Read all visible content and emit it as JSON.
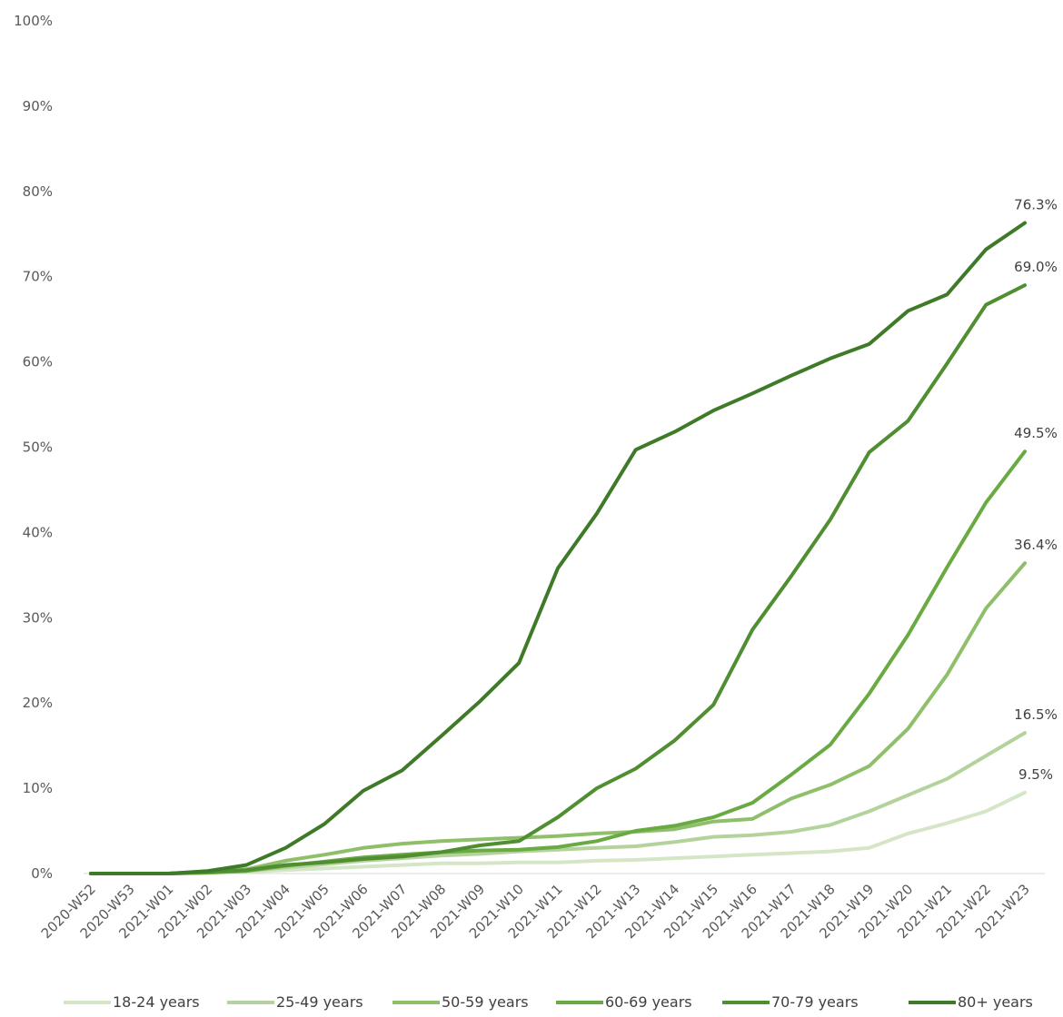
{
  "chart_data": {
    "type": "line",
    "title": "",
    "xlabel": "",
    "ylabel": "",
    "ylim": [
      0,
      100
    ],
    "yticks": [
      "0%",
      "10%",
      "20%",
      "30%",
      "40%",
      "50%",
      "60%",
      "70%",
      "80%",
      "90%",
      "100%"
    ],
    "categories": [
      "2020-W52",
      "2020-W53",
      "2021-W01",
      "2021-W02",
      "2021-W03",
      "2021-W04",
      "2021-W05",
      "2021-W06",
      "2021-W07",
      "2021-W08",
      "2021-W09",
      "2021-W10",
      "2021-W11",
      "2021-W12",
      "2021-W13",
      "2021-W14",
      "2021-W15",
      "2021-W16",
      "2021-W17",
      "2021-W18",
      "2021-W19",
      "2021-W20",
      "2021-W21",
      "2021-W22",
      "2021-W23"
    ],
    "grid": false,
    "legend_position": "bottom",
    "series": [
      {
        "name": "18-24 years",
        "color": "#d4e6c6",
        "end_label": "9.5%",
        "values": [
          0,
          0,
          0,
          0.1,
          0.2,
          0.4,
          0.6,
          0.8,
          1.0,
          1.2,
          1.2,
          1.3,
          1.3,
          1.5,
          1.6,
          1.8,
          2.0,
          2.2,
          2.4,
          2.6,
          3.0,
          4.7,
          5.9,
          7.3,
          9.5
        ]
      },
      {
        "name": "25-49 years",
        "color": "#b4d39c",
        "end_label": "16.5%",
        "values": [
          0,
          0,
          0,
          0.1,
          0.3,
          0.7,
          1.1,
          1.5,
          1.8,
          2.1,
          2.3,
          2.6,
          2.8,
          3.0,
          3.2,
          3.7,
          4.3,
          4.5,
          4.9,
          5.7,
          7.3,
          9.2,
          11.1,
          13.8,
          16.5
        ]
      },
      {
        "name": "50-59 years",
        "color": "#8fbf6a",
        "end_label": "36.4%",
        "values": [
          0,
          0,
          0,
          0.2,
          0.5,
          1.5,
          2.2,
          3.0,
          3.5,
          3.8,
          4.0,
          4.2,
          4.4,
          4.7,
          4.9,
          5.2,
          6.1,
          6.4,
          8.8,
          10.4,
          12.6,
          17.0,
          23.3,
          31.1,
          36.4
        ]
      },
      {
        "name": "60-69 years",
        "color": "#6aaa42",
        "end_label": "49.5%",
        "values": [
          0,
          0,
          0,
          0.1,
          0.3,
          0.9,
          1.4,
          1.9,
          2.2,
          2.5,
          2.7,
          2.8,
          3.1,
          3.8,
          5.0,
          5.6,
          6.6,
          8.3,
          11.6,
          15.1,
          21.1,
          28.0,
          35.9,
          43.5,
          49.5
        ]
      },
      {
        "name": "70-79 years",
        "color": "#4f8e31",
        "end_label": "69.0%",
        "values": [
          0,
          0,
          0,
          0.2,
          0.4,
          1.0,
          1.3,
          1.7,
          2.0,
          2.5,
          3.3,
          3.8,
          6.6,
          10.0,
          12.3,
          15.6,
          19.8,
          28.6,
          34.9,
          41.5,
          49.4,
          53.1,
          59.8,
          66.7,
          69.0
        ]
      },
      {
        "name": "80+ years",
        "color": "#3f7a28",
        "end_label": "76.3%",
        "values": [
          0,
          0,
          0,
          0.3,
          1.0,
          3.0,
          5.8,
          9.7,
          12.1,
          16.1,
          20.2,
          24.7,
          35.8,
          42.2,
          49.7,
          51.8,
          54.3,
          56.3,
          58.4,
          60.4,
          62.1,
          66.0,
          67.9,
          73.2,
          76.3
        ]
      }
    ]
  }
}
